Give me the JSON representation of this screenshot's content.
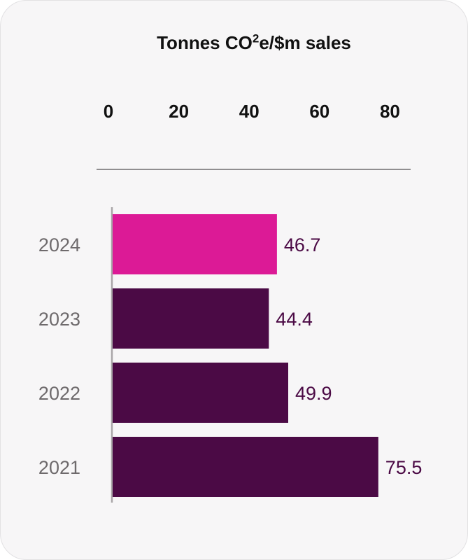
{
  "chart_data": {
    "type": "bar",
    "orientation": "horizontal",
    "title_main": "Tonnes CO",
    "title_sup": "2",
    "title_rest": "e/$m sales",
    "categories": [
      "2024",
      "2023",
      "2022",
      "2021"
    ],
    "values": [
      46.7,
      44.4,
      49.9,
      75.5
    ],
    "value_labels": [
      "46.7",
      "44.4",
      "49.9",
      "75.5"
    ],
    "xlim": [
      0,
      80
    ],
    "xticks": [
      "0",
      "20",
      "40",
      "60",
      "80"
    ],
    "xtick_values": [
      0,
      20,
      40,
      60,
      80
    ],
    "axis_position": "top",
    "grid": false,
    "legend": "none",
    "colors": {
      "highlight": "#dc1a96",
      "default": "#4b0a45",
      "value_label": "#4b0a45",
      "category_label": "#6e6a6c"
    },
    "highlight_categories": [
      "2024"
    ]
  }
}
